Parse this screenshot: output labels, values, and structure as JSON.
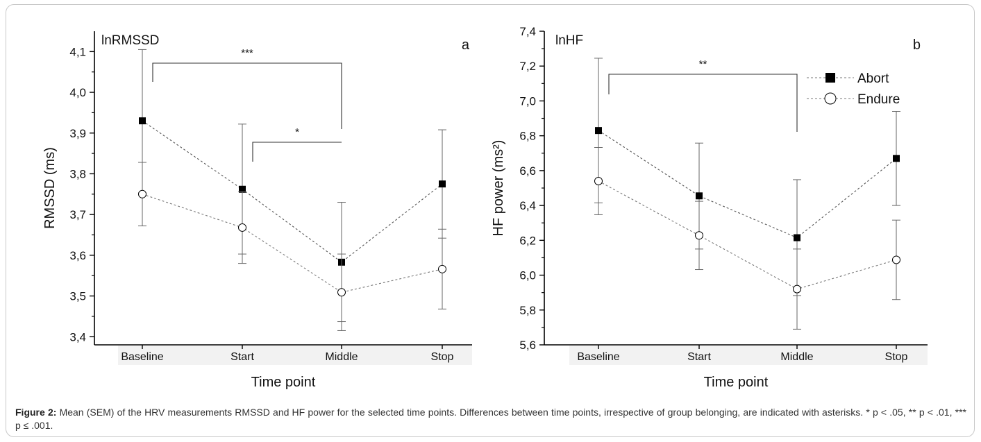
{
  "chart_data": [
    {
      "type": "line",
      "panel_label": "a",
      "inner_title": "lnRMSSD",
      "xlabel": "Time point",
      "ylabel": "RMSSD (ms)",
      "categories": [
        "Baseline",
        "Start",
        "Middle",
        "Stop"
      ],
      "ylim": [
        3.38,
        4.15
      ],
      "yticks": [
        3.4,
        3.5,
        3.6,
        3.7,
        3.8,
        3.9,
        4.0,
        4.1
      ],
      "ytick_labels": [
        "3,4",
        "3,5",
        "3,6",
        "3,7",
        "3,8",
        "3,9",
        "4,0",
        "4,1"
      ],
      "series": [
        {
          "name": "Abort",
          "marker": "square-filled",
          "values": [
            3.93,
            3.762,
            3.583,
            3.775
          ],
          "err_low": [
            3.753,
            3.603,
            3.437,
            3.642
          ],
          "err_high": [
            4.105,
            3.922,
            3.73,
            3.908
          ]
        },
        {
          "name": "Endure",
          "marker": "circle-open",
          "values": [
            3.75,
            3.668,
            3.509,
            3.566
          ],
          "err_low": [
            3.672,
            3.58,
            3.415,
            3.468
          ],
          "err_high": [
            3.828,
            3.756,
            3.603,
            3.664
          ]
        }
      ],
      "significance": [
        {
          "from": "Baseline",
          "to": "Middle",
          "label": "***"
        },
        {
          "from": "Start",
          "to": "Middle",
          "label": "*"
        }
      ]
    },
    {
      "type": "line",
      "panel_label": "b",
      "inner_title": "lnHF",
      "xlabel": "Time point",
      "ylabel": "HF power (ms²)",
      "categories": [
        "Baseline",
        "Start",
        "Middle",
        "Stop"
      ],
      "ylim": [
        5.6,
        7.4
      ],
      "yticks": [
        5.6,
        5.8,
        6.0,
        6.2,
        6.4,
        6.6,
        6.8,
        7.0,
        7.2,
        7.4
      ],
      "ytick_labels": [
        "5,6",
        "5,8",
        "6,0",
        "6,2",
        "6,4",
        "6,6",
        "6,8",
        "7,0",
        "7,2",
        "7,4"
      ],
      "series": [
        {
          "name": "Abort",
          "marker": "square-filled",
          "values": [
            6.83,
            6.455,
            6.215,
            6.67
          ],
          "err_low": [
            6.415,
            6.15,
            5.883,
            6.4
          ],
          "err_high": [
            7.245,
            6.758,
            6.548,
            6.94
          ]
        },
        {
          "name": "Endure",
          "marker": "circle-open",
          "values": [
            6.54,
            6.228,
            5.92,
            6.088
          ],
          "err_low": [
            6.347,
            6.032,
            5.69,
            5.86
          ],
          "err_high": [
            6.733,
            6.424,
            6.15,
            6.316
          ]
        }
      ],
      "significance": [
        {
          "from": "Baseline",
          "to": "Middle",
          "label": "**"
        }
      ],
      "legend": {
        "placement": "top-right",
        "entries": [
          "Abort",
          "Endure"
        ]
      }
    }
  ],
  "caption": {
    "label": "Figure 2:",
    "text": " Mean (SEM) of the HRV measurements RMSSD and HF power for the selected time points. Differences between time points, irrespective of group belonging, are indicated with asterisks. * p < .05, ** p < .01, *** p ≤ .001."
  }
}
